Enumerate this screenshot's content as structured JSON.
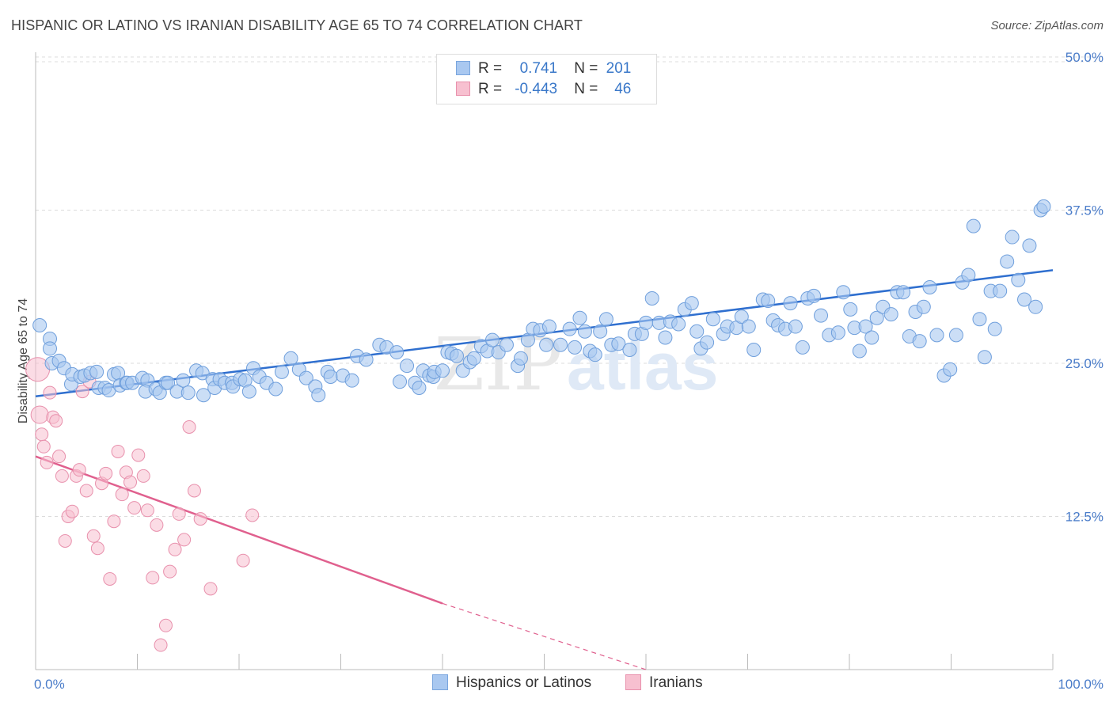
{
  "title": "HISPANIC OR LATINO VS IRANIAN DISABILITY AGE 65 TO 74 CORRELATION CHART",
  "source": "Source: ZipAtlas.com",
  "watermark": {
    "zip": "ZIP",
    "atlas": "atlas"
  },
  "legend": {
    "r_label": "R =",
    "n_label": "N =",
    "rows": [
      {
        "r": "0.741",
        "n": "201",
        "color": "#a9c8f0",
        "border": "#7aa6de"
      },
      {
        "r": "-0.443",
        "n": "46",
        "color": "#f7c0d0",
        "border": "#e890ac"
      }
    ]
  },
  "bottom_legend": [
    {
      "label": "Hispanics or Latinos",
      "color": "#a9c8f0",
      "border": "#7aa6de"
    },
    {
      "label": "Iranians",
      "color": "#f7c0d0",
      "border": "#e890ac"
    }
  ],
  "chart_data": {
    "type": "scatter",
    "title": "HISPANIC OR LATINO VS IRANIAN DISABILITY AGE 65 TO 74 CORRELATION CHART",
    "xlabel": "",
    "ylabel": "Disability Age 65 to 74",
    "xlim": [
      0,
      100
    ],
    "ylim": [
      0,
      50
    ],
    "x_tick_labels": [
      "0.0%",
      "100.0%"
    ],
    "y_ticks": [
      12.5,
      25.0,
      37.5,
      50.0
    ],
    "y_tick_labels": [
      "12.5%",
      "25.0%",
      "37.5%",
      "50.0%"
    ],
    "grid": true,
    "legend_position": "top-center",
    "series": [
      {
        "name": "Hispanics or Latinos",
        "color": "#a9c8f0",
        "line_color": "#2f6fcf",
        "trend": {
          "x": [
            0,
            100
          ],
          "y": [
            22.3,
            32.6
          ]
        },
        "points": [
          [
            0.4,
            28.1
          ],
          [
            1.4,
            27.0
          ],
          [
            1.4,
            26.2
          ],
          [
            1.6,
            25.0
          ],
          [
            2.3,
            25.2
          ],
          [
            2.8,
            24.6
          ],
          [
            3.5,
            23.3
          ],
          [
            3.6,
            24.1
          ],
          [
            4.4,
            23.9
          ],
          [
            4.8,
            24.0
          ],
          [
            5.4,
            24.2
          ],
          [
            6.0,
            24.3
          ],
          [
            6.2,
            23.0
          ],
          [
            6.8,
            23.0
          ],
          [
            7.2,
            22.8
          ],
          [
            7.7,
            24.1
          ],
          [
            8.1,
            24.2
          ],
          [
            8.3,
            23.2
          ],
          [
            8.9,
            23.4
          ],
          [
            9.0,
            23.4
          ],
          [
            9.5,
            23.4
          ],
          [
            10.5,
            23.8
          ],
          [
            11.0,
            23.6
          ],
          [
            10.8,
            22.7
          ],
          [
            11.8,
            22.9
          ],
          [
            12.2,
            22.6
          ],
          [
            12.8,
            23.4
          ],
          [
            13.0,
            23.4
          ],
          [
            13.9,
            22.7
          ],
          [
            14.5,
            23.6
          ],
          [
            15.0,
            22.6
          ],
          [
            15.8,
            24.4
          ],
          [
            16.4,
            24.2
          ],
          [
            16.5,
            22.4
          ],
          [
            17.4,
            23.7
          ],
          [
            17.6,
            23.0
          ],
          [
            18.1,
            23.7
          ],
          [
            18.6,
            23.4
          ],
          [
            19.3,
            23.4
          ],
          [
            19.4,
            23.1
          ],
          [
            20.1,
            23.7
          ],
          [
            20.6,
            23.6
          ],
          [
            21.0,
            22.7
          ],
          [
            21.4,
            24.6
          ],
          [
            22.0,
            23.9
          ],
          [
            22.7,
            23.4
          ],
          [
            23.6,
            22.9
          ],
          [
            24.2,
            24.3
          ],
          [
            25.1,
            25.4
          ],
          [
            25.9,
            24.5
          ],
          [
            26.6,
            23.8
          ],
          [
            27.5,
            23.1
          ],
          [
            27.8,
            22.4
          ],
          [
            28.7,
            24.3
          ],
          [
            29.0,
            23.9
          ],
          [
            30.2,
            24.0
          ],
          [
            31.1,
            23.6
          ],
          [
            31.6,
            25.6
          ],
          [
            32.5,
            25.3
          ],
          [
            33.8,
            26.5
          ],
          [
            34.5,
            26.3
          ],
          [
            35.5,
            25.9
          ],
          [
            35.8,
            23.5
          ],
          [
            36.5,
            24.8
          ],
          [
            37.3,
            23.4
          ],
          [
            37.7,
            23.0
          ],
          [
            38.1,
            24.4
          ],
          [
            38.7,
            24.0
          ],
          [
            39.1,
            23.9
          ],
          [
            39.2,
            24.3
          ],
          [
            40.0,
            24.4
          ],
          [
            40.5,
            25.9
          ],
          [
            40.9,
            25.8
          ],
          [
            41.4,
            25.6
          ],
          [
            42.0,
            24.4
          ],
          [
            42.7,
            25.1
          ],
          [
            43.1,
            25.4
          ],
          [
            43.8,
            26.4
          ],
          [
            44.4,
            26.0
          ],
          [
            44.9,
            26.9
          ],
          [
            45.5,
            25.9
          ],
          [
            46.3,
            26.5
          ],
          [
            47.4,
            24.8
          ],
          [
            47.7,
            25.4
          ],
          [
            48.4,
            26.9
          ],
          [
            48.9,
            27.8
          ],
          [
            49.6,
            27.7
          ],
          [
            50.2,
            26.5
          ],
          [
            50.5,
            28.0
          ],
          [
            51.6,
            26.5
          ],
          [
            52.5,
            27.8
          ],
          [
            53.0,
            26.3
          ],
          [
            53.5,
            28.7
          ],
          [
            54.0,
            27.6
          ],
          [
            54.5,
            26.0
          ],
          [
            55.0,
            25.7
          ],
          [
            55.5,
            27.6
          ],
          [
            56.1,
            28.6
          ],
          [
            56.6,
            26.5
          ],
          [
            57.3,
            26.6
          ],
          [
            58.4,
            26.1
          ],
          [
            58.9,
            27.4
          ],
          [
            59.6,
            27.4
          ],
          [
            60.0,
            28.3
          ],
          [
            60.6,
            30.3
          ],
          [
            61.3,
            28.3
          ],
          [
            61.9,
            27.1
          ],
          [
            62.4,
            28.4
          ],
          [
            63.2,
            28.2
          ],
          [
            63.8,
            29.4
          ],
          [
            64.5,
            29.9
          ],
          [
            65.0,
            27.6
          ],
          [
            65.4,
            26.2
          ],
          [
            66.0,
            26.7
          ],
          [
            66.6,
            28.6
          ],
          [
            67.6,
            27.4
          ],
          [
            68.0,
            28.0
          ],
          [
            68.9,
            27.9
          ],
          [
            69.4,
            28.8
          ],
          [
            70.1,
            28.0
          ],
          [
            70.6,
            26.1
          ],
          [
            71.5,
            30.2
          ],
          [
            72.0,
            30.1
          ],
          [
            72.5,
            28.5
          ],
          [
            73.0,
            28.1
          ],
          [
            73.7,
            27.8
          ],
          [
            74.2,
            29.9
          ],
          [
            74.7,
            28.0
          ],
          [
            75.4,
            26.3
          ],
          [
            75.9,
            30.3
          ],
          [
            76.5,
            30.5
          ],
          [
            77.2,
            28.9
          ],
          [
            78.0,
            27.3
          ],
          [
            78.9,
            27.5
          ],
          [
            79.4,
            30.8
          ],
          [
            80.1,
            29.4
          ],
          [
            80.5,
            27.9
          ],
          [
            81.0,
            26.0
          ],
          [
            81.6,
            28.0
          ],
          [
            82.2,
            27.1
          ],
          [
            82.7,
            28.7
          ],
          [
            83.3,
            29.6
          ],
          [
            84.1,
            29.0
          ],
          [
            84.7,
            30.8
          ],
          [
            85.3,
            30.8
          ],
          [
            85.9,
            27.2
          ],
          [
            86.5,
            29.2
          ],
          [
            86.9,
            26.8
          ],
          [
            87.3,
            29.6
          ],
          [
            87.9,
            31.2
          ],
          [
            88.6,
            27.3
          ],
          [
            89.3,
            24.0
          ],
          [
            89.9,
            24.5
          ],
          [
            90.5,
            27.3
          ],
          [
            91.1,
            31.6
          ],
          [
            91.7,
            32.2
          ],
          [
            92.2,
            36.2
          ],
          [
            92.8,
            28.6
          ],
          [
            93.3,
            25.5
          ],
          [
            93.9,
            30.9
          ],
          [
            94.3,
            27.8
          ],
          [
            94.8,
            30.9
          ],
          [
            95.5,
            33.3
          ],
          [
            96.0,
            35.3
          ],
          [
            96.6,
            31.8
          ],
          [
            97.2,
            30.2
          ],
          [
            97.7,
            34.6
          ],
          [
            98.3,
            29.6
          ],
          [
            98.8,
            37.5
          ],
          [
            99.1,
            37.8
          ]
        ]
      },
      {
        "name": "Iranians",
        "color": "#f7c0d0",
        "line_color": "#e0608e",
        "trend": {
          "x": [
            0,
            40
          ],
          "y": [
            17.4,
            5.4
          ]
        },
        "trend_dashed": {
          "x": [
            40,
            60
          ],
          "y": [
            5.4,
            -0.6
          ]
        },
        "points": [
          [
            0.2,
            24.5
          ],
          [
            0.4,
            20.8
          ],
          [
            0.6,
            19.2
          ],
          [
            0.8,
            18.2
          ],
          [
            1.1,
            16.9
          ],
          [
            1.4,
            22.6
          ],
          [
            1.7,
            20.6
          ],
          [
            2.0,
            20.3
          ],
          [
            2.3,
            17.4
          ],
          [
            2.6,
            15.8
          ],
          [
            2.9,
            10.5
          ],
          [
            3.2,
            12.5
          ],
          [
            3.6,
            12.9
          ],
          [
            4.0,
            15.8
          ],
          [
            4.3,
            16.3
          ],
          [
            4.6,
            22.7
          ],
          [
            5.0,
            14.6
          ],
          [
            5.3,
            23.5
          ],
          [
            5.7,
            10.9
          ],
          [
            6.1,
            9.9
          ],
          [
            6.5,
            15.2
          ],
          [
            6.9,
            16.0
          ],
          [
            7.3,
            7.4
          ],
          [
            7.7,
            12.1
          ],
          [
            8.1,
            17.8
          ],
          [
            8.5,
            14.3
          ],
          [
            8.9,
            16.1
          ],
          [
            9.3,
            15.3
          ],
          [
            9.7,
            13.2
          ],
          [
            10.1,
            17.5
          ],
          [
            10.6,
            15.8
          ],
          [
            11.0,
            13.0
          ],
          [
            11.5,
            7.5
          ],
          [
            11.9,
            11.8
          ],
          [
            12.3,
            2.0
          ],
          [
            12.8,
            3.6
          ],
          [
            13.2,
            8.0
          ],
          [
            13.7,
            9.8
          ],
          [
            14.1,
            12.7
          ],
          [
            14.6,
            10.6
          ],
          [
            15.1,
            19.8
          ],
          [
            15.6,
            14.6
          ],
          [
            16.2,
            12.3
          ],
          [
            17.2,
            6.6
          ],
          [
            20.4,
            8.9
          ],
          [
            21.3,
            12.6
          ]
        ]
      }
    ]
  }
}
